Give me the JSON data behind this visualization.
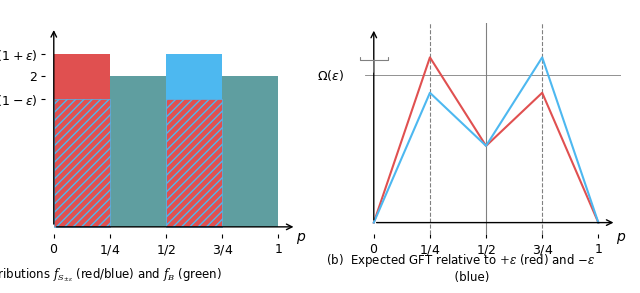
{
  "eps": 0.15,
  "left_xlim": [
    0,
    1.08
  ],
  "left_ylim": [
    0,
    2.6
  ],
  "right_xlim": [
    0,
    1.08
  ],
  "green_color": "#5f9ea0",
  "red_color": "#e05050",
  "blue_color": "#4db8f0",
  "hatch_red": "////",
  "hatch_blue": "////",
  "caption_a": "(a)  Distributions $f_{S_{\\pm\\varepsilon}}$ (red/blue) and $f_B$ (green)",
  "caption_b": "(b)  Expected GFT relative to $+\\varepsilon$ (red) and $-\\varepsilon$\n      (blue)"
}
